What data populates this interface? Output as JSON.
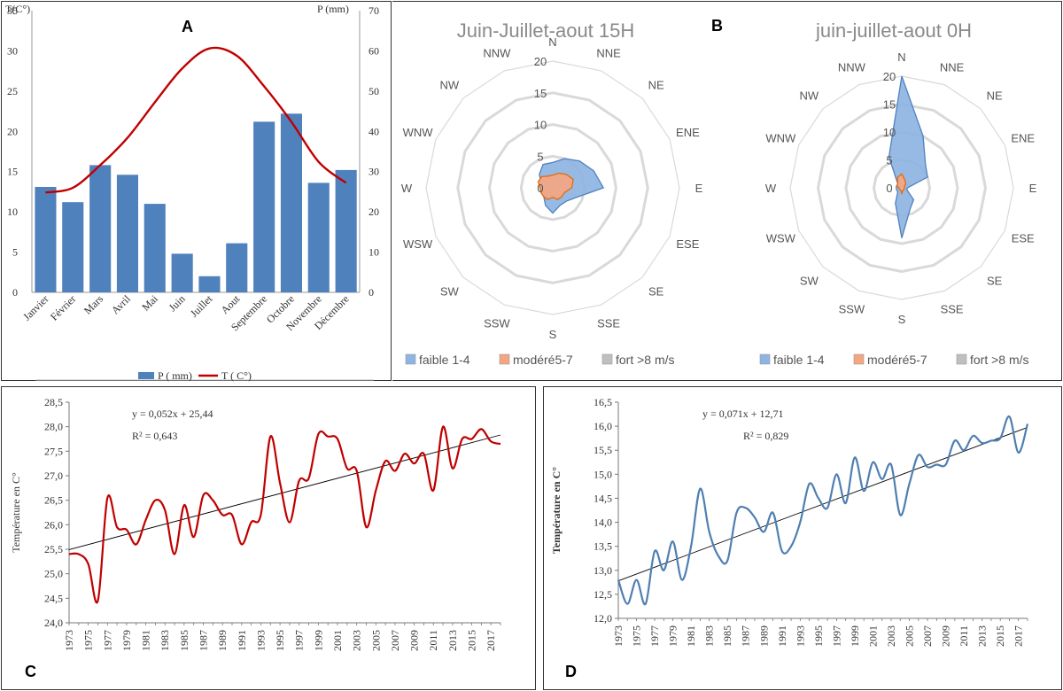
{
  "figure": {
    "labels": {
      "a": "A",
      "b": "B",
      "c": "C",
      "d": "D"
    }
  },
  "colors": {
    "bar": "#4f81bd",
    "temp_line": "#c00000",
    "faible": "#8eb4e3",
    "faible_stroke": "#4f81bd",
    "modere": "#f4a582",
    "modere_stroke": "#e46c0a",
    "fort": "#bfbfbf",
    "series_c": "#c00000",
    "series_d": "#4f7fb1",
    "trend": "#000000"
  },
  "chart_data": [
    {
      "type": "bar",
      "panel": "A",
      "title": "",
      "categories": [
        "Janvier",
        "Février",
        "Mars",
        "Avril",
        "Mai",
        "Juin",
        "Juillet",
        "Aout",
        "Septembre",
        "Octobre",
        "Novembre",
        "Décembre"
      ],
      "series": [
        {
          "name": "P ( mm)",
          "kind": "bar",
          "axis": "right",
          "values": [
            26.2,
            22.4,
            31.6,
            29.2,
            22.0,
            9.6,
            4.0,
            12.2,
            42.4,
            44.4,
            27.2,
            30.4
          ]
        },
        {
          "name": "T ( C°)",
          "kind": "line",
          "axis": "left",
          "values": [
            12.4,
            13.0,
            15.8,
            19.2,
            23.6,
            27.8,
            30.3,
            29.4,
            25.6,
            21.2,
            16.2,
            13.6
          ]
        }
      ],
      "ylabel": "T(C°)",
      "y2label": "P (mm)",
      "ylim": [
        0,
        35
      ],
      "y2lim": [
        0,
        70
      ],
      "yticks": [
        0,
        5,
        10,
        15,
        20,
        25,
        30,
        35
      ],
      "y2ticks": [
        0,
        10,
        20,
        30,
        40,
        50,
        60,
        70
      ],
      "legend": [
        "P ( mm)",
        "T ( C°)"
      ]
    },
    {
      "type": "radar",
      "panel": "B-left",
      "title": "Juin-Juillet-aout 15H",
      "categories": [
        "N",
        "NNE",
        "NE",
        "ENE",
        "E",
        "ESE",
        "SE",
        "SSE",
        "S",
        "SSW",
        "SW",
        "WSW",
        "W",
        "WNW",
        "NW",
        "NNW"
      ],
      "rticks": [
        0,
        5,
        10,
        15,
        20
      ],
      "rmax": 20,
      "series": [
        {
          "name": "faible 1-4",
          "values": [
            4,
            5,
            6,
            7,
            8,
            4,
            3,
            3,
            4,
            3,
            2,
            2,
            2,
            2,
            3,
            4
          ]
        },
        {
          "name": "modéré5-7",
          "values": [
            2,
            2.5,
            3,
            3.5,
            3,
            2,
            2,
            2,
            1.5,
            2,
            2,
            2,
            2,
            2.5,
            2.5,
            2
          ]
        },
        {
          "name": "fort >8 m/s",
          "values": [
            0,
            0,
            0,
            0,
            0,
            0,
            0,
            0,
            0,
            0,
            0,
            0,
            0,
            0,
            0,
            0
          ]
        }
      ]
    },
    {
      "type": "radar",
      "panel": "B-right",
      "title": "juin-juillet-aout 0H",
      "categories": [
        "N",
        "NNE",
        "NE",
        "ENE",
        "E",
        "ESE",
        "SE",
        "SSE",
        "S",
        "SSW",
        "SW",
        "WSW",
        "W",
        "WNW",
        "NW",
        "NNW"
      ],
      "rticks": [
        0,
        5,
        10,
        15,
        20
      ],
      "rmax": 20,
      "series": [
        {
          "name": "faible 1-4",
          "values": [
            20,
            10,
            6,
            5,
            1,
            1,
            3,
            4,
            9,
            3,
            1,
            1,
            1,
            1,
            1,
            6
          ]
        },
        {
          "name": "modéré5-7",
          "values": [
            2.5,
            1.5,
            1,
            0.5,
            0.5,
            0.5,
            0.5,
            0.5,
            1,
            0.5,
            0.5,
            0.5,
            0.5,
            1,
            1,
            2
          ]
        },
        {
          "name": "fort >8 m/s",
          "values": [
            0,
            0,
            0,
            0,
            0,
            0,
            0,
            0,
            0,
            0,
            0,
            0,
            0,
            0,
            0,
            0
          ]
        }
      ]
    },
    {
      "type": "line",
      "panel": "C",
      "x": [
        1973,
        1974,
        1975,
        1976,
        1977,
        1978,
        1979,
        1980,
        1981,
        1982,
        1983,
        1984,
        1985,
        1986,
        1987,
        1988,
        1989,
        1990,
        1991,
        1992,
        1993,
        1994,
        1995,
        1996,
        1997,
        1998,
        1999,
        2000,
        2001,
        2002,
        2003,
        2004,
        2005,
        2006,
        2007,
        2008,
        2009,
        2010,
        2011,
        2012,
        2013,
        2014,
        2015,
        2016,
        2017,
        2018
      ],
      "series": [
        {
          "name": "Température",
          "values": [
            25.4,
            25.4,
            25.2,
            24.45,
            26.55,
            25.95,
            25.9,
            25.6,
            26.1,
            26.5,
            26.3,
            25.4,
            26.4,
            25.75,
            26.6,
            26.5,
            26.2,
            26.2,
            25.6,
            26.05,
            26.2,
            27.8,
            26.85,
            26.05,
            26.9,
            26.95,
            27.85,
            27.8,
            27.75,
            27.15,
            27.1,
            25.95,
            26.7,
            27.3,
            27.1,
            27.45,
            27.25,
            27.45,
            26.7,
            28.0,
            27.15,
            27.75,
            27.75,
            27.95,
            27.7,
            27.65
          ]
        }
      ],
      "trendline": {
        "equation": "y = 0,052x + 25,44",
        "r2": "R² = 0,643",
        "slope": 0.052,
        "intercept": 25.44
      },
      "ylabel": "Température en C°",
      "ylim": [
        24.0,
        28.5
      ],
      "yticks": [
        "24,0",
        "24,5",
        "25,0",
        "25,5",
        "26,0",
        "26,5",
        "27,0",
        "27,5",
        "28,0",
        "28,5"
      ],
      "xtick_labels": [
        "1973",
        "1975",
        "1977",
        "1979",
        "1981",
        "1983",
        "1985",
        "1987",
        "1989",
        "1991",
        "1993",
        "1995",
        "1997",
        "1999",
        "2001",
        "2003",
        "2005",
        "2007",
        "2009",
        "2011",
        "2013",
        "2015",
        "2017"
      ]
    },
    {
      "type": "line",
      "panel": "D",
      "x": [
        1973,
        1974,
        1975,
        1976,
        1977,
        1978,
        1979,
        1980,
        1981,
        1982,
        1983,
        1984,
        1985,
        1986,
        1987,
        1988,
        1989,
        1990,
        1991,
        1992,
        1993,
        1994,
        1995,
        1996,
        1997,
        1998,
        1999,
        2000,
        2001,
        2002,
        2003,
        2004,
        2005,
        2006,
        2007,
        2008,
        2009,
        2010,
        2011,
        2012,
        2013,
        2014,
        2015,
        2016,
        2017,
        2018
      ],
      "series": [
        {
          "name": "Température",
          "values": [
            12.8,
            12.3,
            12.8,
            12.3,
            13.4,
            13.0,
            13.6,
            12.8,
            13.5,
            14.7,
            13.8,
            13.3,
            13.2,
            14.2,
            14.3,
            14.1,
            13.8,
            14.2,
            13.4,
            13.5,
            14.0,
            14.8,
            14.5,
            14.3,
            15.0,
            14.4,
            15.35,
            14.65,
            15.25,
            14.9,
            15.2,
            14.15,
            14.8,
            15.4,
            15.15,
            15.2,
            15.2,
            15.7,
            15.5,
            15.8,
            15.65,
            15.7,
            15.75,
            16.2,
            15.45,
            16.05
          ]
        }
      ],
      "trendline": {
        "equation": "y = 0,071x + 12,71",
        "r2": "R² = 0,829",
        "slope": 0.071,
        "intercept": 12.71
      },
      "ylabel": "Température en C°",
      "ylim": [
        12.0,
        16.5
      ],
      "yticks": [
        "12,0",
        "12,5",
        "13,0",
        "13,5",
        "14,0",
        "14,5",
        "15,0",
        "15,5",
        "16,0",
        "16,5"
      ],
      "xtick_labels": [
        "1973",
        "1975",
        "1977",
        "1979",
        "1981",
        "1983",
        "1985",
        "1987",
        "1989",
        "1991",
        "1993",
        "1995",
        "1997",
        "1999",
        "2001",
        "2003",
        "2005",
        "2007",
        "2009",
        "2011",
        "2013",
        "2015",
        "2017"
      ]
    }
  ]
}
